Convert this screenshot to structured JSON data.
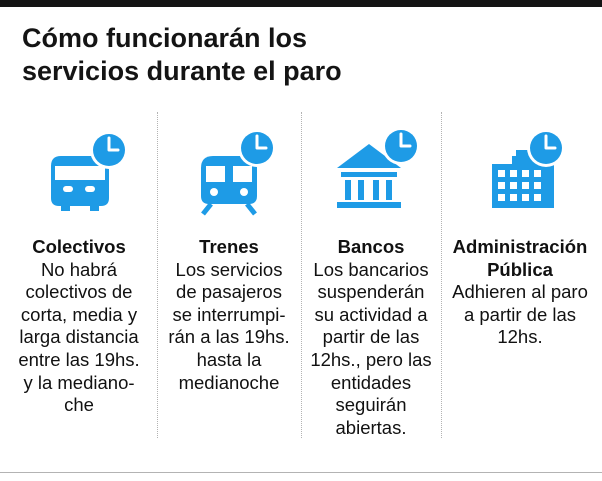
{
  "title": {
    "line1": "Cómo funcionarán los",
    "line2": "servicios durante el paro"
  },
  "accent_color": "#1e9be6",
  "columns": [
    {
      "icon": "bus-clock-icon",
      "heading": [
        "Colectivos"
      ],
      "lines": [
        "No habrá",
        "colectivos de",
        "corta, media y",
        "larga distancia",
        "entre las 19hs.",
        "y la mediano-",
        "che"
      ]
    },
    {
      "icon": "train-clock-icon",
      "heading": [
        "Trenes"
      ],
      "lines": [
        "Los servicios",
        "de pasajeros",
        "se interrumpi-",
        "rán a las 19hs.",
        "hasta la",
        "medianoche"
      ]
    },
    {
      "icon": "bank-clock-icon",
      "heading": [
        "Bancos"
      ],
      "lines": [
        "Los bancarios",
        "suspenderán",
        "su actividad a",
        "partir de las",
        "12hs., pero las",
        "entidades",
        "seguirán",
        "abiertas."
      ]
    },
    {
      "icon": "building-clock-icon",
      "heading": [
        "Administración",
        "Pública"
      ],
      "lines": [
        "Adhieren al paro",
        "a partir de las",
        "12hs."
      ]
    }
  ]
}
